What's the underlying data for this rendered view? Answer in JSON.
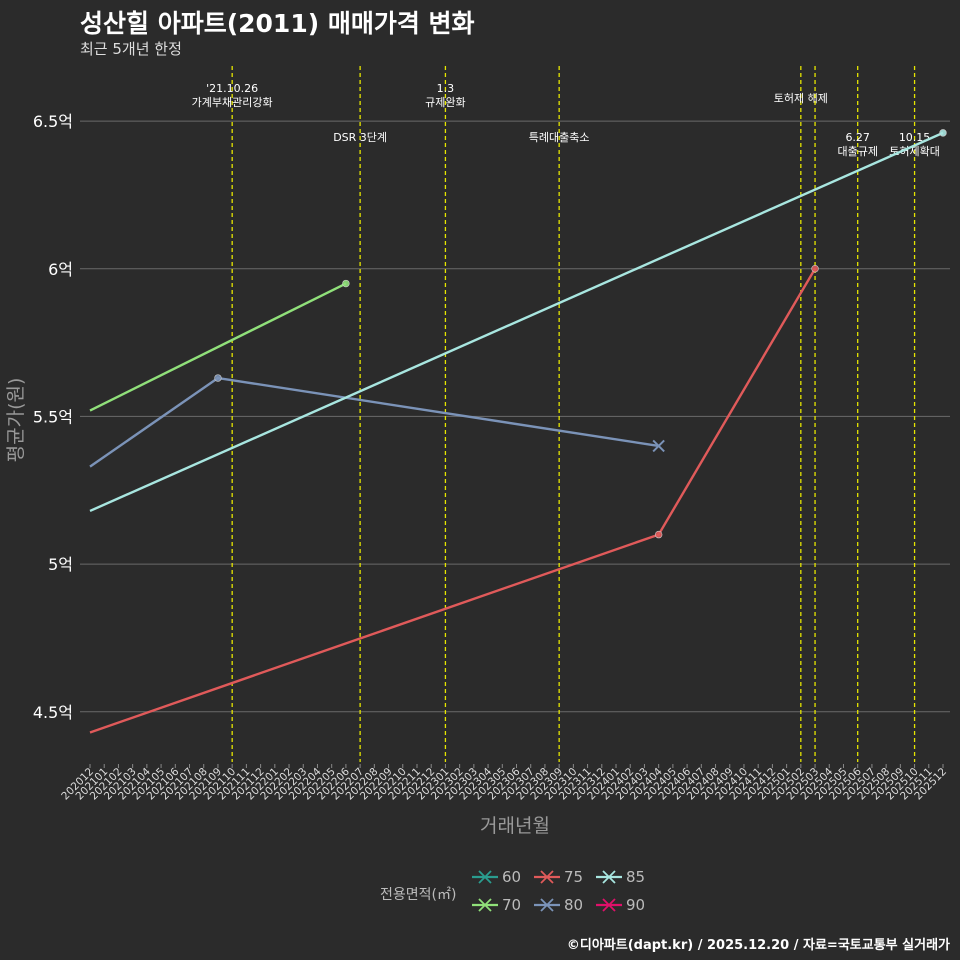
{
  "title": "성산힐 아파트(2011) 매매가격 변화",
  "subtitle": "최근 5개년 한정",
  "caption": "©디아파트(dapt.kr) / 2025.12.20 / 자료=국토교통부 실거래가",
  "colors": {
    "background": "#2b2b2b",
    "grid": "#6a6a6a",
    "event_line": "#e6e600",
    "axis_text": "#ffffff",
    "axis_title": "#999999",
    "s60": "#2a9d8f",
    "s70": "#90e07a",
    "s75": "#e05a5a",
    "s80": "#7b93b8",
    "s85": "#a8e6e0",
    "s90": "#e0106a"
  },
  "legend": {
    "title": "전용면적(㎡)",
    "items": [
      {
        "label": "60",
        "color_key": "s60"
      },
      {
        "label": "75",
        "color_key": "s75"
      },
      {
        "label": "85",
        "color_key": "s85"
      },
      {
        "label": "70",
        "color_key": "s70"
      },
      {
        "label": "80",
        "color_key": "s80"
      },
      {
        "label": "90",
        "color_key": "s90"
      }
    ]
  },
  "chart_data": {
    "type": "line",
    "title": "성산힐 아파트(2011) 매매가격 변화",
    "xlabel": "거래년월",
    "ylabel": "평균가(원)",
    "ylim": [
      4.33,
      6.7
    ],
    "yticks": [
      {
        "value": 4.5,
        "label": "4.5억"
      },
      {
        "value": 5,
        "label": "5억"
      },
      {
        "value": 5.5,
        "label": "5.5억"
      },
      {
        "value": 6,
        "label": "6억"
      },
      {
        "value": 6.5,
        "label": "6.5억"
      }
    ],
    "categories": [
      "202012",
      "202101",
      "202102",
      "202103",
      "202104",
      "202105",
      "202106",
      "202107",
      "202108",
      "202109",
      "202110",
      "202111",
      "202112",
      "202201",
      "202202",
      "202203",
      "202204",
      "202205",
      "202206",
      "202207",
      "202208",
      "202209",
      "202210",
      "202211",
      "202212",
      "202301",
      "202302",
      "202303",
      "202304",
      "202305",
      "202306",
      "202307",
      "202308",
      "202309",
      "202310",
      "202311",
      "202312",
      "202401",
      "202402",
      "202403",
      "202404",
      "202405",
      "202406",
      "202407",
      "202408",
      "202409",
      "202410",
      "202411",
      "202412",
      "202501",
      "202502",
      "202503",
      "202504",
      "202505",
      "202506",
      "202507",
      "202508",
      "202509",
      "202510",
      "202511",
      "202512"
    ],
    "series": [
      {
        "name": "70",
        "color_key": "s70",
        "points": [
          [
            "202012",
            5.52
          ],
          [
            "202206",
            5.95
          ]
        ],
        "end_markers": [
          "202206"
        ],
        "x_marker": null
      },
      {
        "name": "80",
        "color_key": "s80",
        "points": [
          [
            "202012",
            5.33
          ],
          [
            "202109",
            5.63
          ],
          [
            "202404",
            5.4
          ]
        ],
        "end_markers": [
          "202109"
        ],
        "x_marker": "202404"
      },
      {
        "name": "85",
        "color_key": "s85",
        "points": [
          [
            "202012",
            5.18
          ],
          [
            "202512",
            6.46
          ]
        ],
        "end_markers": [
          "202512"
        ],
        "x_marker": null
      },
      {
        "name": "75",
        "color_key": "s75",
        "points": [
          [
            "202012",
            4.43
          ],
          [
            "202404",
            5.1
          ],
          [
            "202503",
            6.0
          ]
        ],
        "end_markers": [
          "202404",
          "202503"
        ],
        "x_marker": null
      }
    ],
    "events": [
      {
        "x": "202110",
        "lines": [
          "'21.10.26",
          "가계부채관리강화"
        ],
        "level": "high"
      },
      {
        "x": "202207",
        "lines": [
          "DSR 3단계"
        ],
        "level": "low"
      },
      {
        "x": "202301",
        "lines": [
          "1.3",
          "규제완화"
        ],
        "level": "high"
      },
      {
        "x": "202309",
        "lines": [
          "특례대출축소"
        ],
        "level": "low"
      },
      {
        "x": "202502",
        "lines": [
          "토허제 해제"
        ],
        "level": "mid"
      },
      {
        "x": "202503",
        "lines": [],
        "level": "none"
      },
      {
        "x": "202506",
        "lines": [
          "6.27",
          "대출규제"
        ],
        "level": "low"
      },
      {
        "x": "202510",
        "lines": [
          "10.15",
          "토허제확대"
        ],
        "level": "low"
      }
    ]
  }
}
